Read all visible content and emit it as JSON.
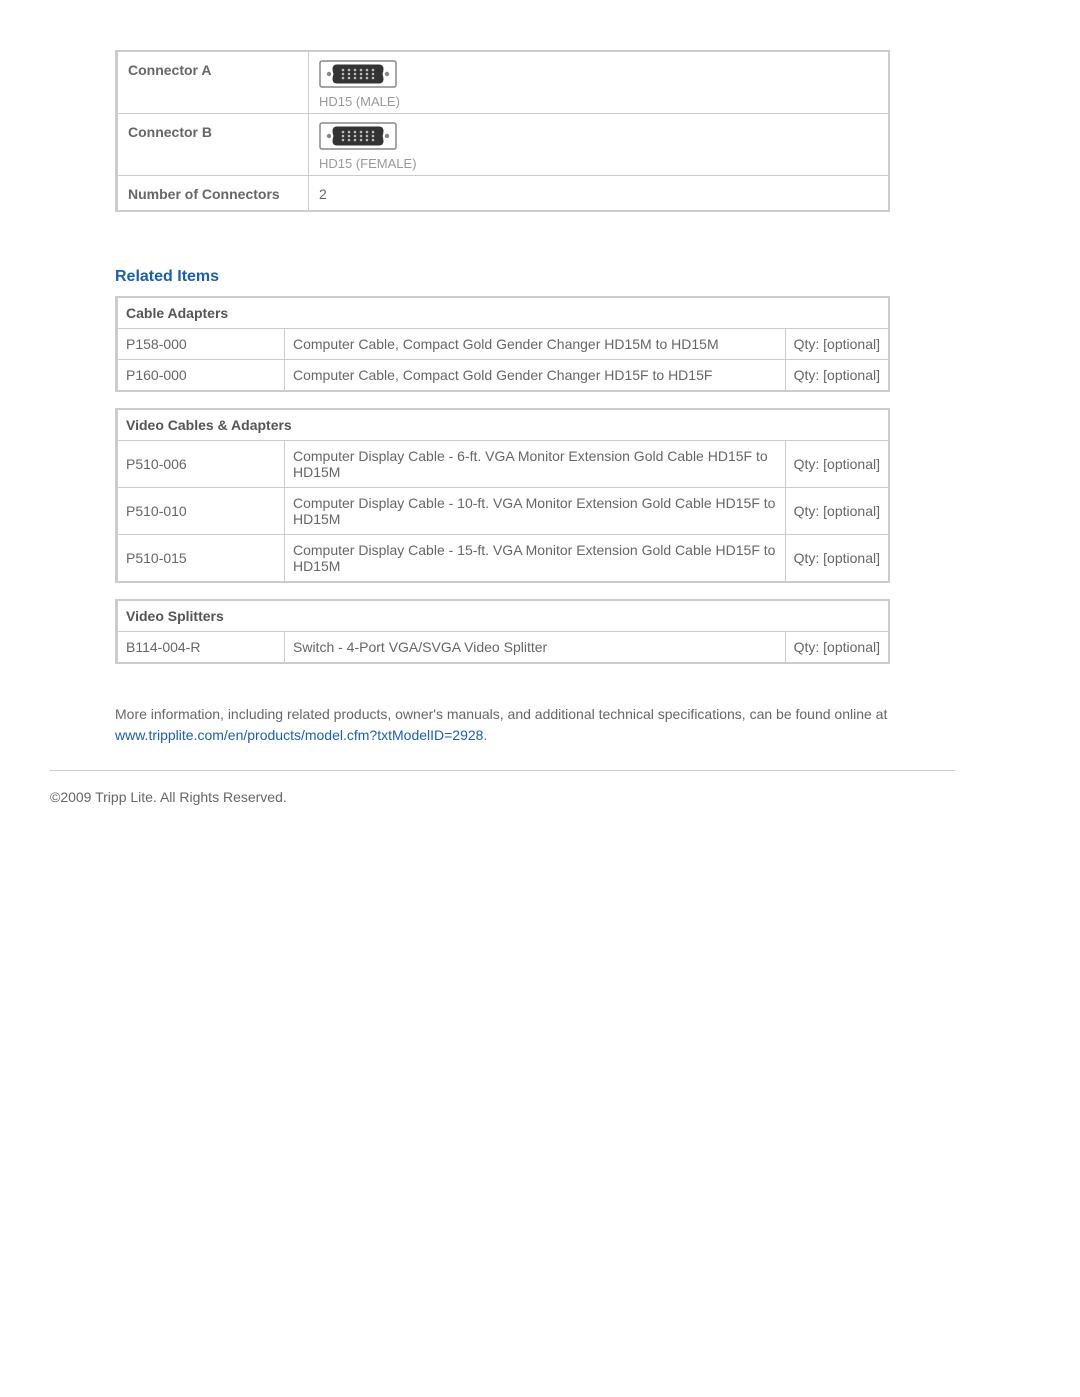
{
  "spec": {
    "rows": [
      {
        "label": "Connector A",
        "type": "connector",
        "caption": "HD15 (MALE)"
      },
      {
        "label": "Connector B",
        "type": "connector",
        "caption": "HD15 (FEMALE)"
      },
      {
        "label": "Number of Connectors",
        "type": "text",
        "value": "2"
      }
    ]
  },
  "related": {
    "title": "Related Items",
    "groups": [
      {
        "header": "Cable Adapters",
        "rows": [
          {
            "sku": "P158-000",
            "desc": "Computer Cable, Compact Gold Gender Changer HD15M to HD15M",
            "qty": "Qty: [optional]"
          },
          {
            "sku": "P160-000",
            "desc": "Computer Cable, Compact Gold Gender Changer HD15F to HD15F",
            "qty": "Qty: [optional]"
          }
        ]
      },
      {
        "header": "Video Cables & Adapters",
        "rows": [
          {
            "sku": "P510-006",
            "desc": "Computer Display Cable - 6-ft. VGA Monitor Extension Gold Cable HD15F to HD15M",
            "qty": "Qty: [optional]"
          },
          {
            "sku": "P510-010",
            "desc": "Computer Display Cable - 10-ft. VGA Monitor Extension Gold Cable HD15F to HD15M",
            "qty": "Qty: [optional]"
          },
          {
            "sku": "P510-015",
            "desc": "Computer Display Cable - 15-ft. VGA Monitor Extension Gold Cable HD15F to HD15M",
            "qty": "Qty: [optional]"
          }
        ]
      },
      {
        "header": "Video Splitters",
        "rows": [
          {
            "sku": "B114-004-R",
            "desc": "Switch - 4-Port VGA/SVGA Video Splitter",
            "qty": "Qty: [optional]"
          }
        ]
      }
    ]
  },
  "info": {
    "text": "More information, including related products, owner's manuals, and additional technical specifications, can be found online at ",
    "link_text": "www.tripplite.com/en/products/model.cfm?txtModelID=2928"
  },
  "copyright": "©2009 Tripp Lite.  All Rights Reserved."
}
